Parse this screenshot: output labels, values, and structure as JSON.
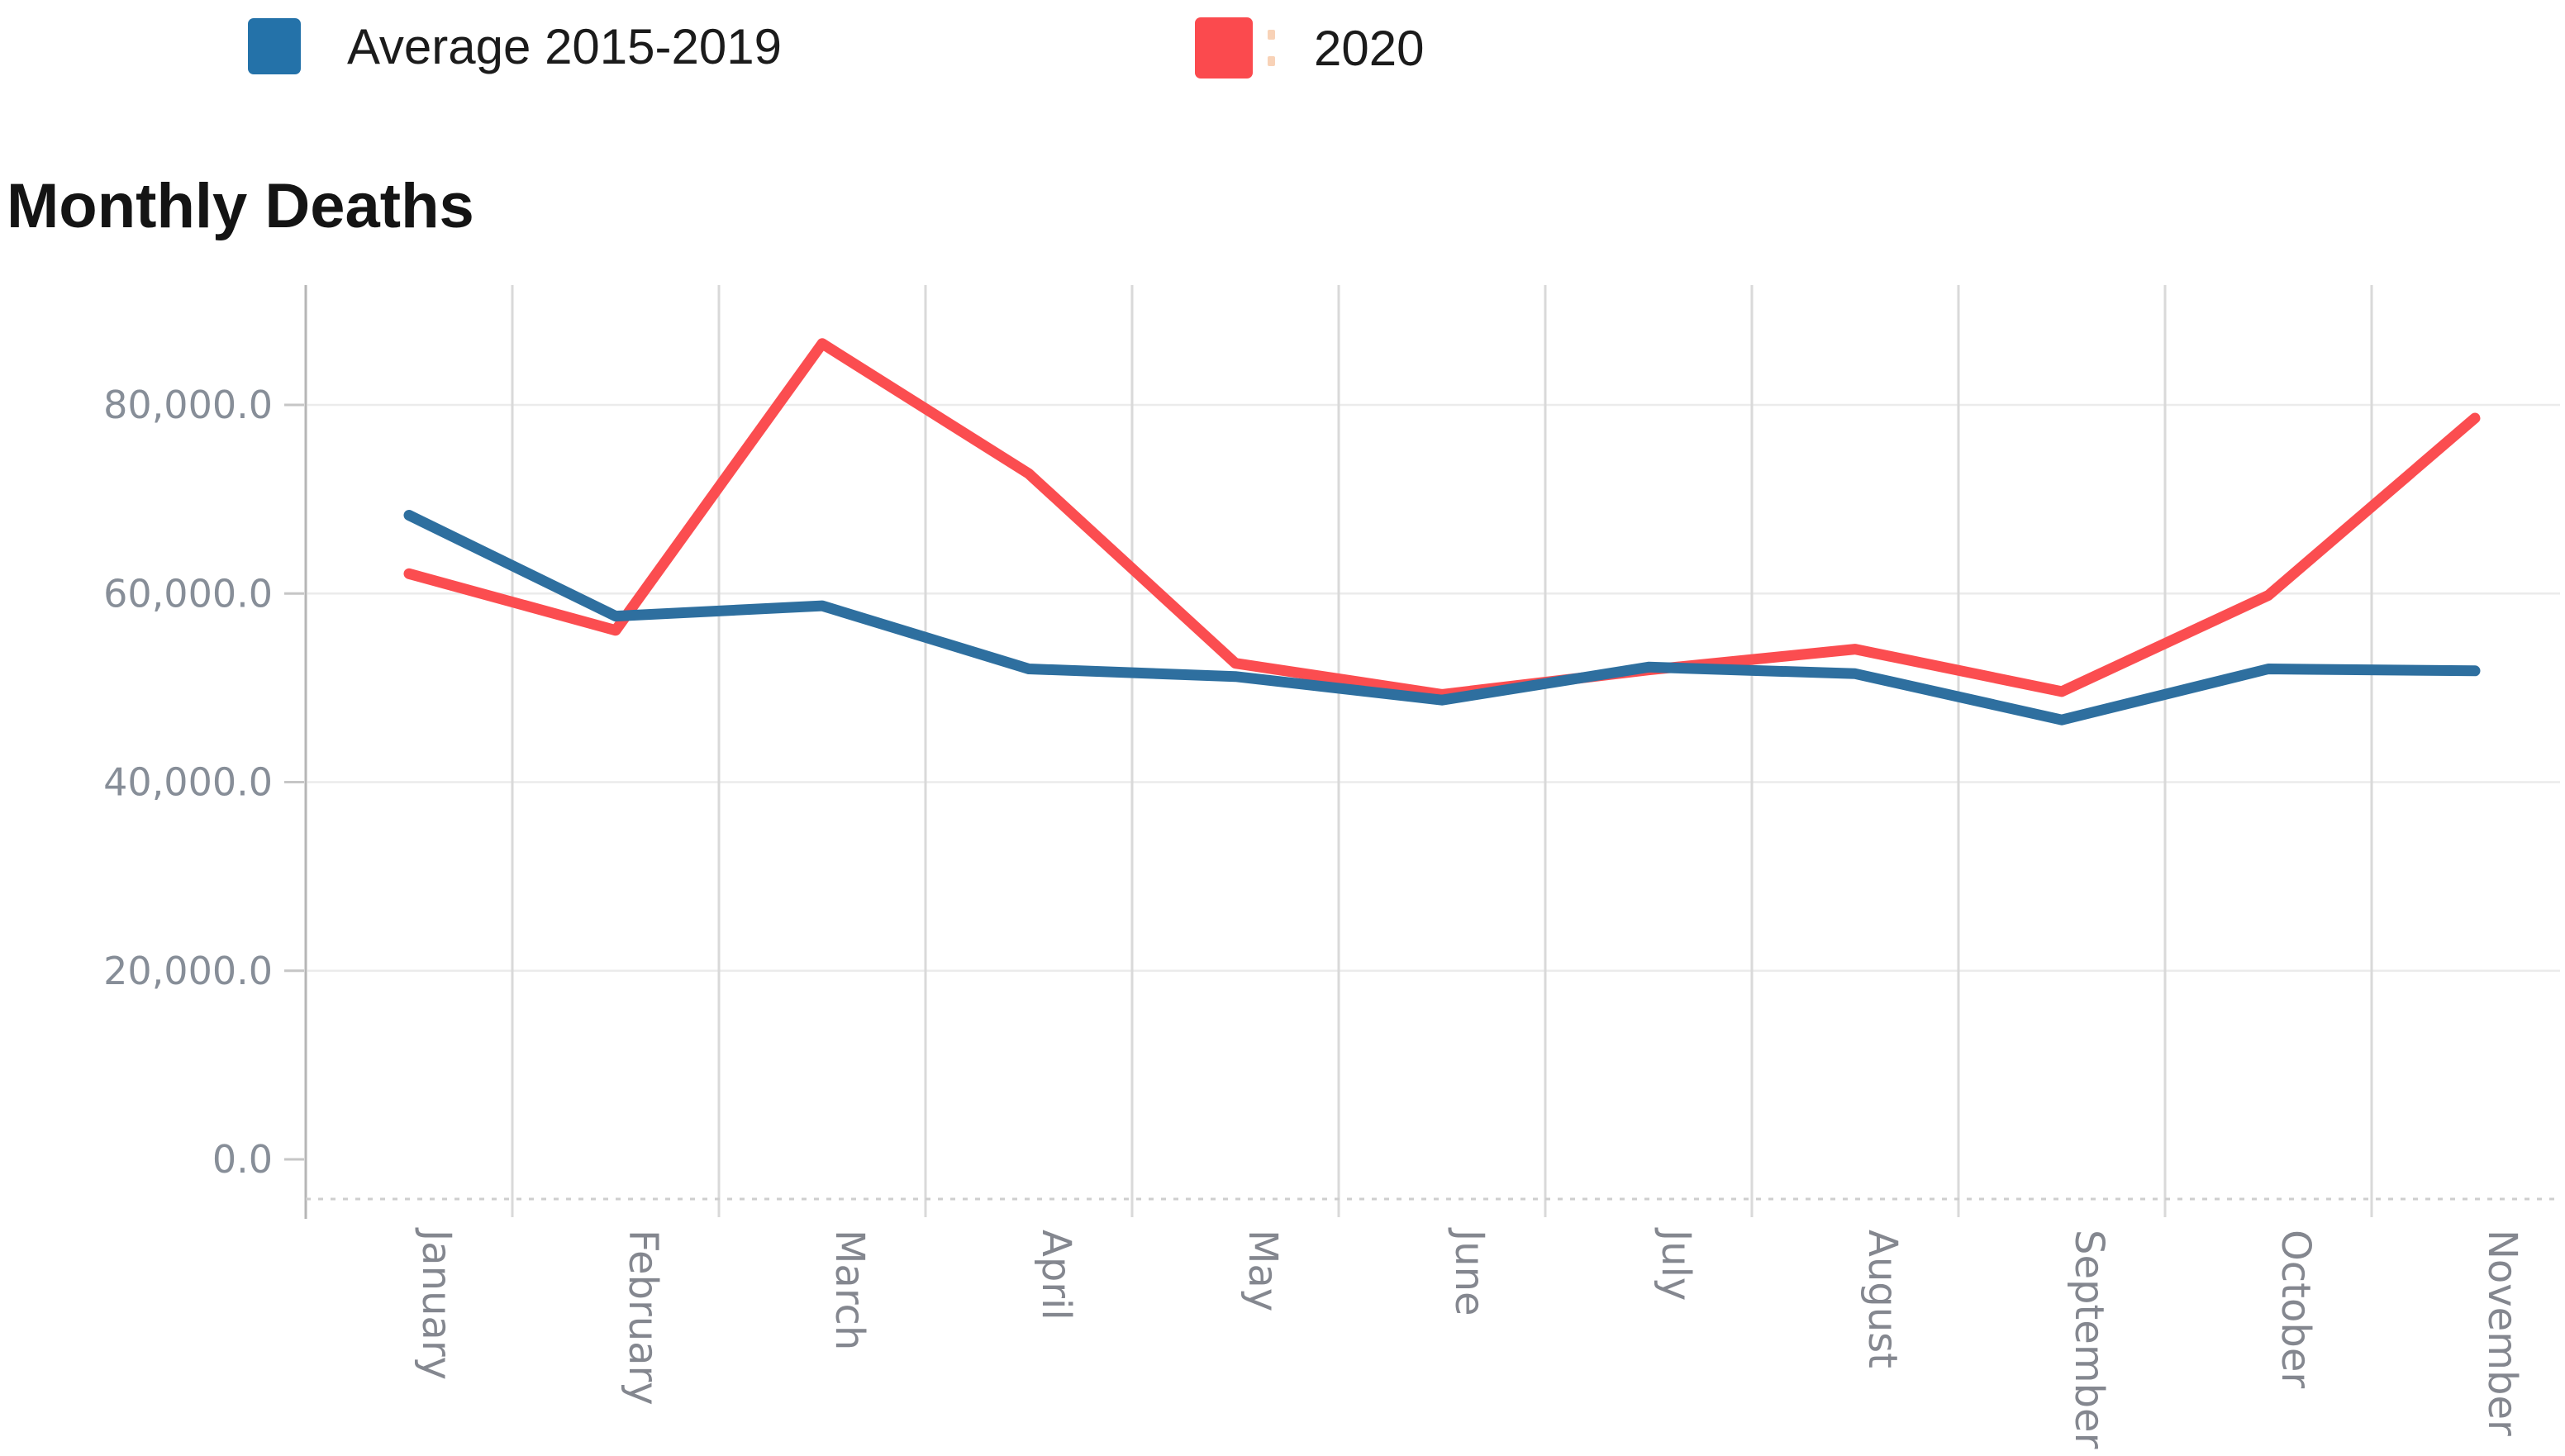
{
  "title": "Monthly Deaths",
  "legend": {
    "items": [
      {
        "label": "Average 2015-2019",
        "swatch_color": "#2472a9"
      },
      {
        "label": "2020",
        "swatch_color": "#fb4a4e"
      }
    ]
  },
  "chart_data": {
    "type": "line",
    "title": "Monthly Deaths",
    "categories": [
      "January",
      "February",
      "March",
      "April",
      "May",
      "June",
      "July",
      "August",
      "September",
      "October",
      "November"
    ],
    "series": [
      {
        "name": "Average 2015-2019",
        "color": "#2e6f9f",
        "values": [
          68300,
          57600,
          58700,
          52000,
          51200,
          48700,
          52200,
          51500,
          46600,
          52000,
          51800
        ]
      },
      {
        "name": "2020",
        "color": "#fb4d50",
        "values": [
          62100,
          56100,
          86500,
          72700,
          52600,
          49300,
          51900,
          54100,
          49600,
          59800,
          78600
        ]
      }
    ],
    "yticks": {
      "values": [
        0,
        20000,
        40000,
        60000,
        80000
      ],
      "labels": [
        "0.0",
        "20,000.0",
        "40,000.0",
        "60,000.0",
        "80,000.0"
      ]
    },
    "ylim": [
      0,
      94000
    ],
    "xlabel": "",
    "ylabel": "",
    "legend_position": "top",
    "grid": {
      "horizontal": "at-yticks",
      "vertical": "between-categories"
    },
    "style_colors": {
      "vertical_gridline": "#d9d9d9",
      "horizontal_gridline": "#ebebeb",
      "y_axis_line": "#b6b6b6",
      "baseline_dashed": "#cecece",
      "tick": "#c6c6c6"
    }
  }
}
